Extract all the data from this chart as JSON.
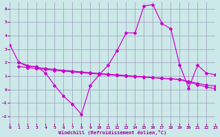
{
  "xlabel": "Windchill (Refroidissement éolien,°C)",
  "xlim": [
    0,
    23
  ],
  "ylim": [
    -2.5,
    6.5
  ],
  "yticks": [
    -2,
    -1,
    0,
    1,
    2,
    3,
    4,
    5,
    6
  ],
  "xticks": [
    0,
    1,
    2,
    3,
    4,
    5,
    6,
    7,
    8,
    9,
    10,
    11,
    12,
    13,
    14,
    15,
    16,
    17,
    18,
    19,
    20,
    21,
    22,
    23
  ],
  "bg_color": "#cce8e8",
  "grid_color": "#9999bb",
  "line_color": "#cc00cc",
  "line1_x": [
    0,
    1,
    2,
    3,
    4,
    5,
    6,
    7,
    8,
    9,
    10,
    11,
    12,
    13,
    14,
    15,
    16,
    17,
    18,
    19,
    20,
    21,
    22,
    23
  ],
  "line1_y": [
    3.3,
    2.0,
    1.7,
    1.7,
    1.2,
    0.3,
    -0.5,
    -1.1,
    -1.85,
    0.3,
    1.1,
    1.8,
    2.9,
    4.2,
    4.2,
    6.2,
    6.3,
    4.9,
    4.5,
    1.8,
    0.1,
    1.8,
    1.2,
    1.1
  ],
  "line2_x": [
    1,
    2,
    3,
    4,
    5,
    6,
    7,
    8,
    9,
    10,
    11,
    12,
    13,
    14,
    15,
    16,
    17,
    18,
    19,
    20,
    21,
    22,
    23
  ],
  "line2_y": [
    2.0,
    1.78,
    1.65,
    1.55,
    1.48,
    1.42,
    1.36,
    1.3,
    1.24,
    1.18,
    1.13,
    1.08,
    1.03,
    0.98,
    0.93,
    0.88,
    0.83,
    0.78,
    0.73,
    0.55,
    0.35,
    0.18,
    0.05
  ],
  "line3_x": [
    1,
    2,
    3,
    4,
    5,
    6,
    7,
    8,
    9,
    10,
    11,
    12,
    13,
    14,
    15,
    16,
    17,
    18,
    19,
    20,
    21,
    22,
    23
  ],
  "line3_y": [
    1.7,
    1.62,
    1.55,
    1.48,
    1.42,
    1.36,
    1.3,
    1.24,
    1.19,
    1.14,
    1.09,
    1.04,
    0.99,
    0.95,
    0.91,
    0.87,
    0.83,
    0.79,
    0.75,
    0.6,
    0.45,
    0.32,
    0.25
  ]
}
